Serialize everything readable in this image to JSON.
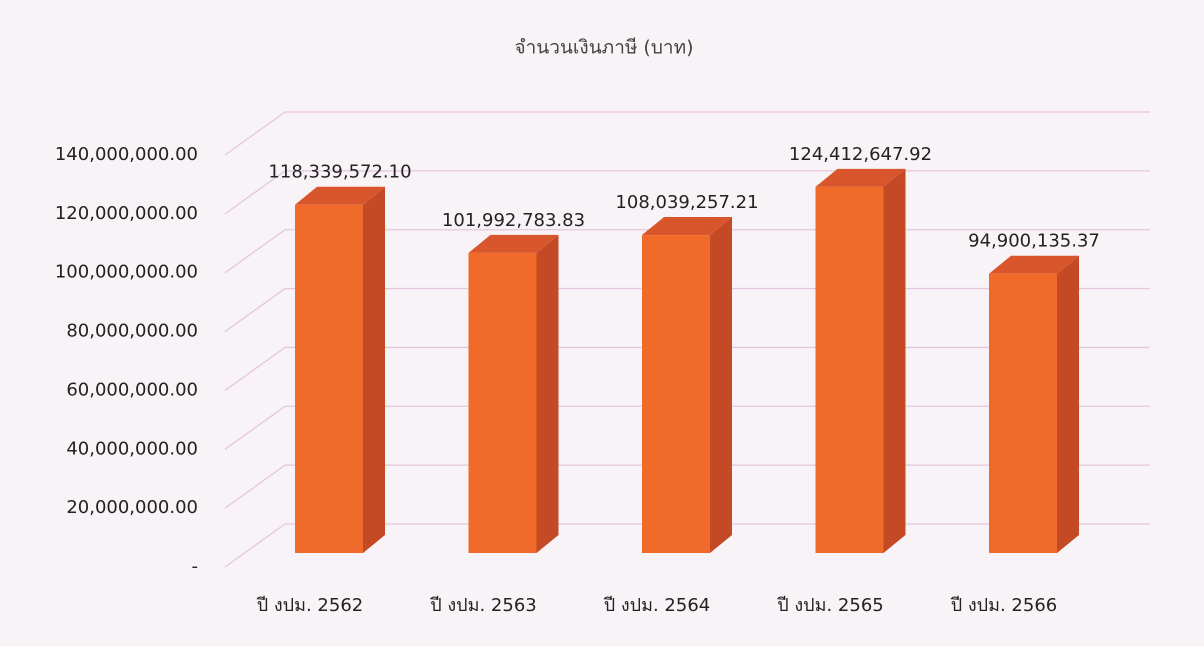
{
  "chart_data": {
    "type": "bar",
    "title": "จำนวนเงินภาษี (บาท)",
    "categories": [
      "ปี งปม. 2562",
      "ปี งปม. 2563",
      "ปี งปม. 2564",
      "ปี งปม. 2565",
      "ปี งปม. 2566"
    ],
    "values": [
      118339572.1,
      101992783.83,
      108039257.21,
      124412647.92,
      94900135.37
    ],
    "value_labels": [
      "118,339,572.10",
      "101,992,783.83",
      "108,039,257.21",
      "124,412,647.92",
      "94,900,135.37"
    ],
    "color": "#f06a2a",
    "ylim": [
      0,
      140000000
    ],
    "yticks": [
      {
        "value": 0,
        "label": "-"
      },
      {
        "value": 20000000,
        "label": "20,000,000.00"
      },
      {
        "value": 40000000,
        "label": "40,000,000.00"
      },
      {
        "value": 60000000,
        "label": "60,000,000.00"
      },
      {
        "value": 80000000,
        "label": "80,000,000.00"
      },
      {
        "value": 100000000,
        "label": "100,000,000.00"
      },
      {
        "value": 120000000,
        "label": "120,000,000.00"
      },
      {
        "value": 140000000,
        "label": "140,000,000.00"
      }
    ],
    "grid": true
  }
}
